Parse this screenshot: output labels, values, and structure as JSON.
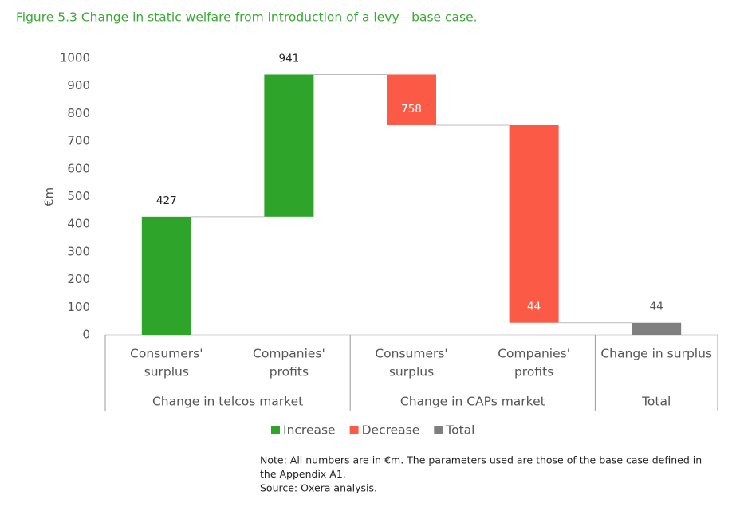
{
  "chart_data": {
    "type": "waterfall",
    "title": "Figure 5.3   Change in static welfare from introduction of a levy—base case.",
    "y_label": "€m",
    "categories": [
      [
        "Consumers'",
        "surplus"
      ],
      [
        "Companies'",
        "profits"
      ],
      [
        "Consumers'",
        "surplus"
      ],
      [
        "Companies'",
        "profits"
      ],
      [
        "Change in surplus"
      ]
    ],
    "groups": [
      {
        "name": "Change in telcos market",
        "size": 2
      },
      {
        "name": "Change in CAPs market",
        "size": 2
      },
      {
        "name": "Total",
        "size": 1
      }
    ],
    "values": [
      427,
      514,
      -183,
      -714,
      44
    ],
    "measures": [
      "relative",
      "relative",
      "relative",
      "relative",
      "total"
    ],
    "data_labels": [
      "427",
      "941",
      "758",
      "44",
      "44"
    ],
    "series": [
      {
        "name": "Increase",
        "color": "#2ea52a"
      },
      {
        "name": "Decrease",
        "color": "#fa5a46"
      },
      {
        "name": "Total",
        "color": "#7f7f7f"
      }
    ],
    "ylim": [
      0,
      1000
    ],
    "yticks": [
      0,
      100,
      200,
      300,
      400,
      500,
      600,
      700,
      800,
      900,
      1000
    ],
    "notes": [
      "Note: All numbers are in €m. The parameters used are those of the base case defined in",
      "the Appendix A1.",
      "Source: Oxera analysis."
    ]
  }
}
